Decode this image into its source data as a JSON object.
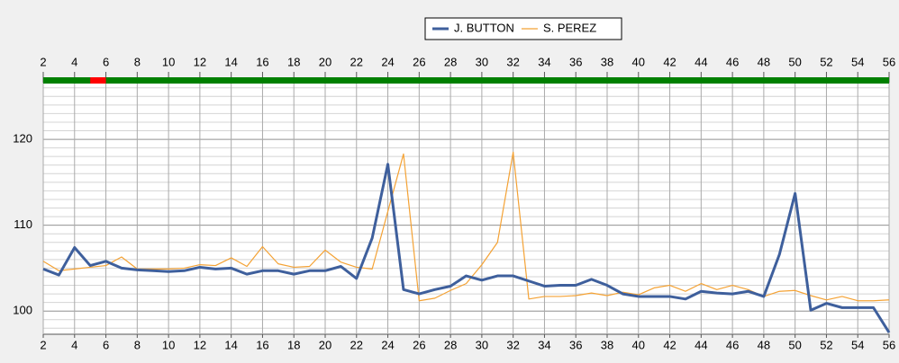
{
  "chart_data": {
    "type": "line",
    "x": [
      2,
      3,
      4,
      5,
      6,
      7,
      8,
      9,
      10,
      11,
      12,
      13,
      14,
      15,
      16,
      17,
      18,
      19,
      20,
      21,
      22,
      23,
      24,
      25,
      26,
      27,
      28,
      29,
      30,
      31,
      32,
      33,
      34,
      35,
      36,
      37,
      38,
      39,
      40,
      41,
      42,
      43,
      44,
      45,
      46,
      47,
      48,
      49,
      50,
      51,
      52,
      53,
      54,
      55,
      56
    ],
    "series": [
      {
        "name": "J. BUTTON",
        "color": "#3e5f9c",
        "width": 3,
        "values": [
          104.9,
          104.2,
          107.4,
          105.3,
          105.8,
          105.0,
          104.8,
          104.7,
          104.6,
          104.7,
          105.1,
          104.9,
          105.0,
          104.3,
          104.7,
          104.7,
          104.3,
          104.7,
          104.7,
          105.2,
          103.8,
          108.5,
          117.1,
          102.5,
          102.0,
          102.5,
          102.9,
          104.1,
          103.6,
          104.1,
          104.1,
          103.5,
          102.9,
          103.0,
          103.0,
          103.7,
          103.0,
          102.0,
          101.7,
          101.7,
          101.7,
          101.4,
          102.3,
          102.1,
          102.0,
          102.3,
          101.7,
          106.6,
          113.7,
          100.1,
          100.9,
          100.4,
          100.4,
          100.4,
          97.5
        ]
      },
      {
        "name": "S. PEREZ",
        "color": "#f4a234",
        "width": 1.2,
        "values": [
          105.8,
          104.7,
          104.9,
          105.1,
          105.3,
          106.3,
          104.9,
          104.9,
          104.9,
          105.0,
          105.4,
          105.3,
          106.2,
          105.2,
          107.5,
          105.5,
          105.1,
          105.2,
          107.1,
          105.7,
          105.1,
          104.9,
          111.6,
          118.3,
          101.2,
          101.5,
          102.4,
          103.2,
          105.4,
          108.0,
          118.5,
          101.4,
          101.7,
          101.7,
          101.8,
          102.1,
          101.8,
          102.2,
          101.9,
          102.7,
          103.0,
          102.3,
          103.2,
          102.5,
          103.0,
          102.5,
          101.7,
          102.3,
          102.4,
          101.8,
          101.3,
          101.7,
          101.2,
          101.2,
          101.3
        ]
      }
    ],
    "xlim": [
      2,
      56
    ],
    "xticks": [
      2,
      4,
      6,
      8,
      10,
      12,
      14,
      16,
      18,
      20,
      22,
      24,
      26,
      28,
      30,
      32,
      34,
      36,
      38,
      40,
      42,
      44,
      46,
      48,
      50,
      52,
      54,
      56
    ],
    "ylim": [
      97.3,
      126.6
    ],
    "yticks": [
      100,
      110,
      120
    ],
    "minor_grid_step": 1,
    "grid": true,
    "legend": "top",
    "status_band": {
      "color": "#008000",
      "segments": [
        {
          "from": 5,
          "to": 6,
          "color": "#ff0000"
        }
      ]
    }
  }
}
